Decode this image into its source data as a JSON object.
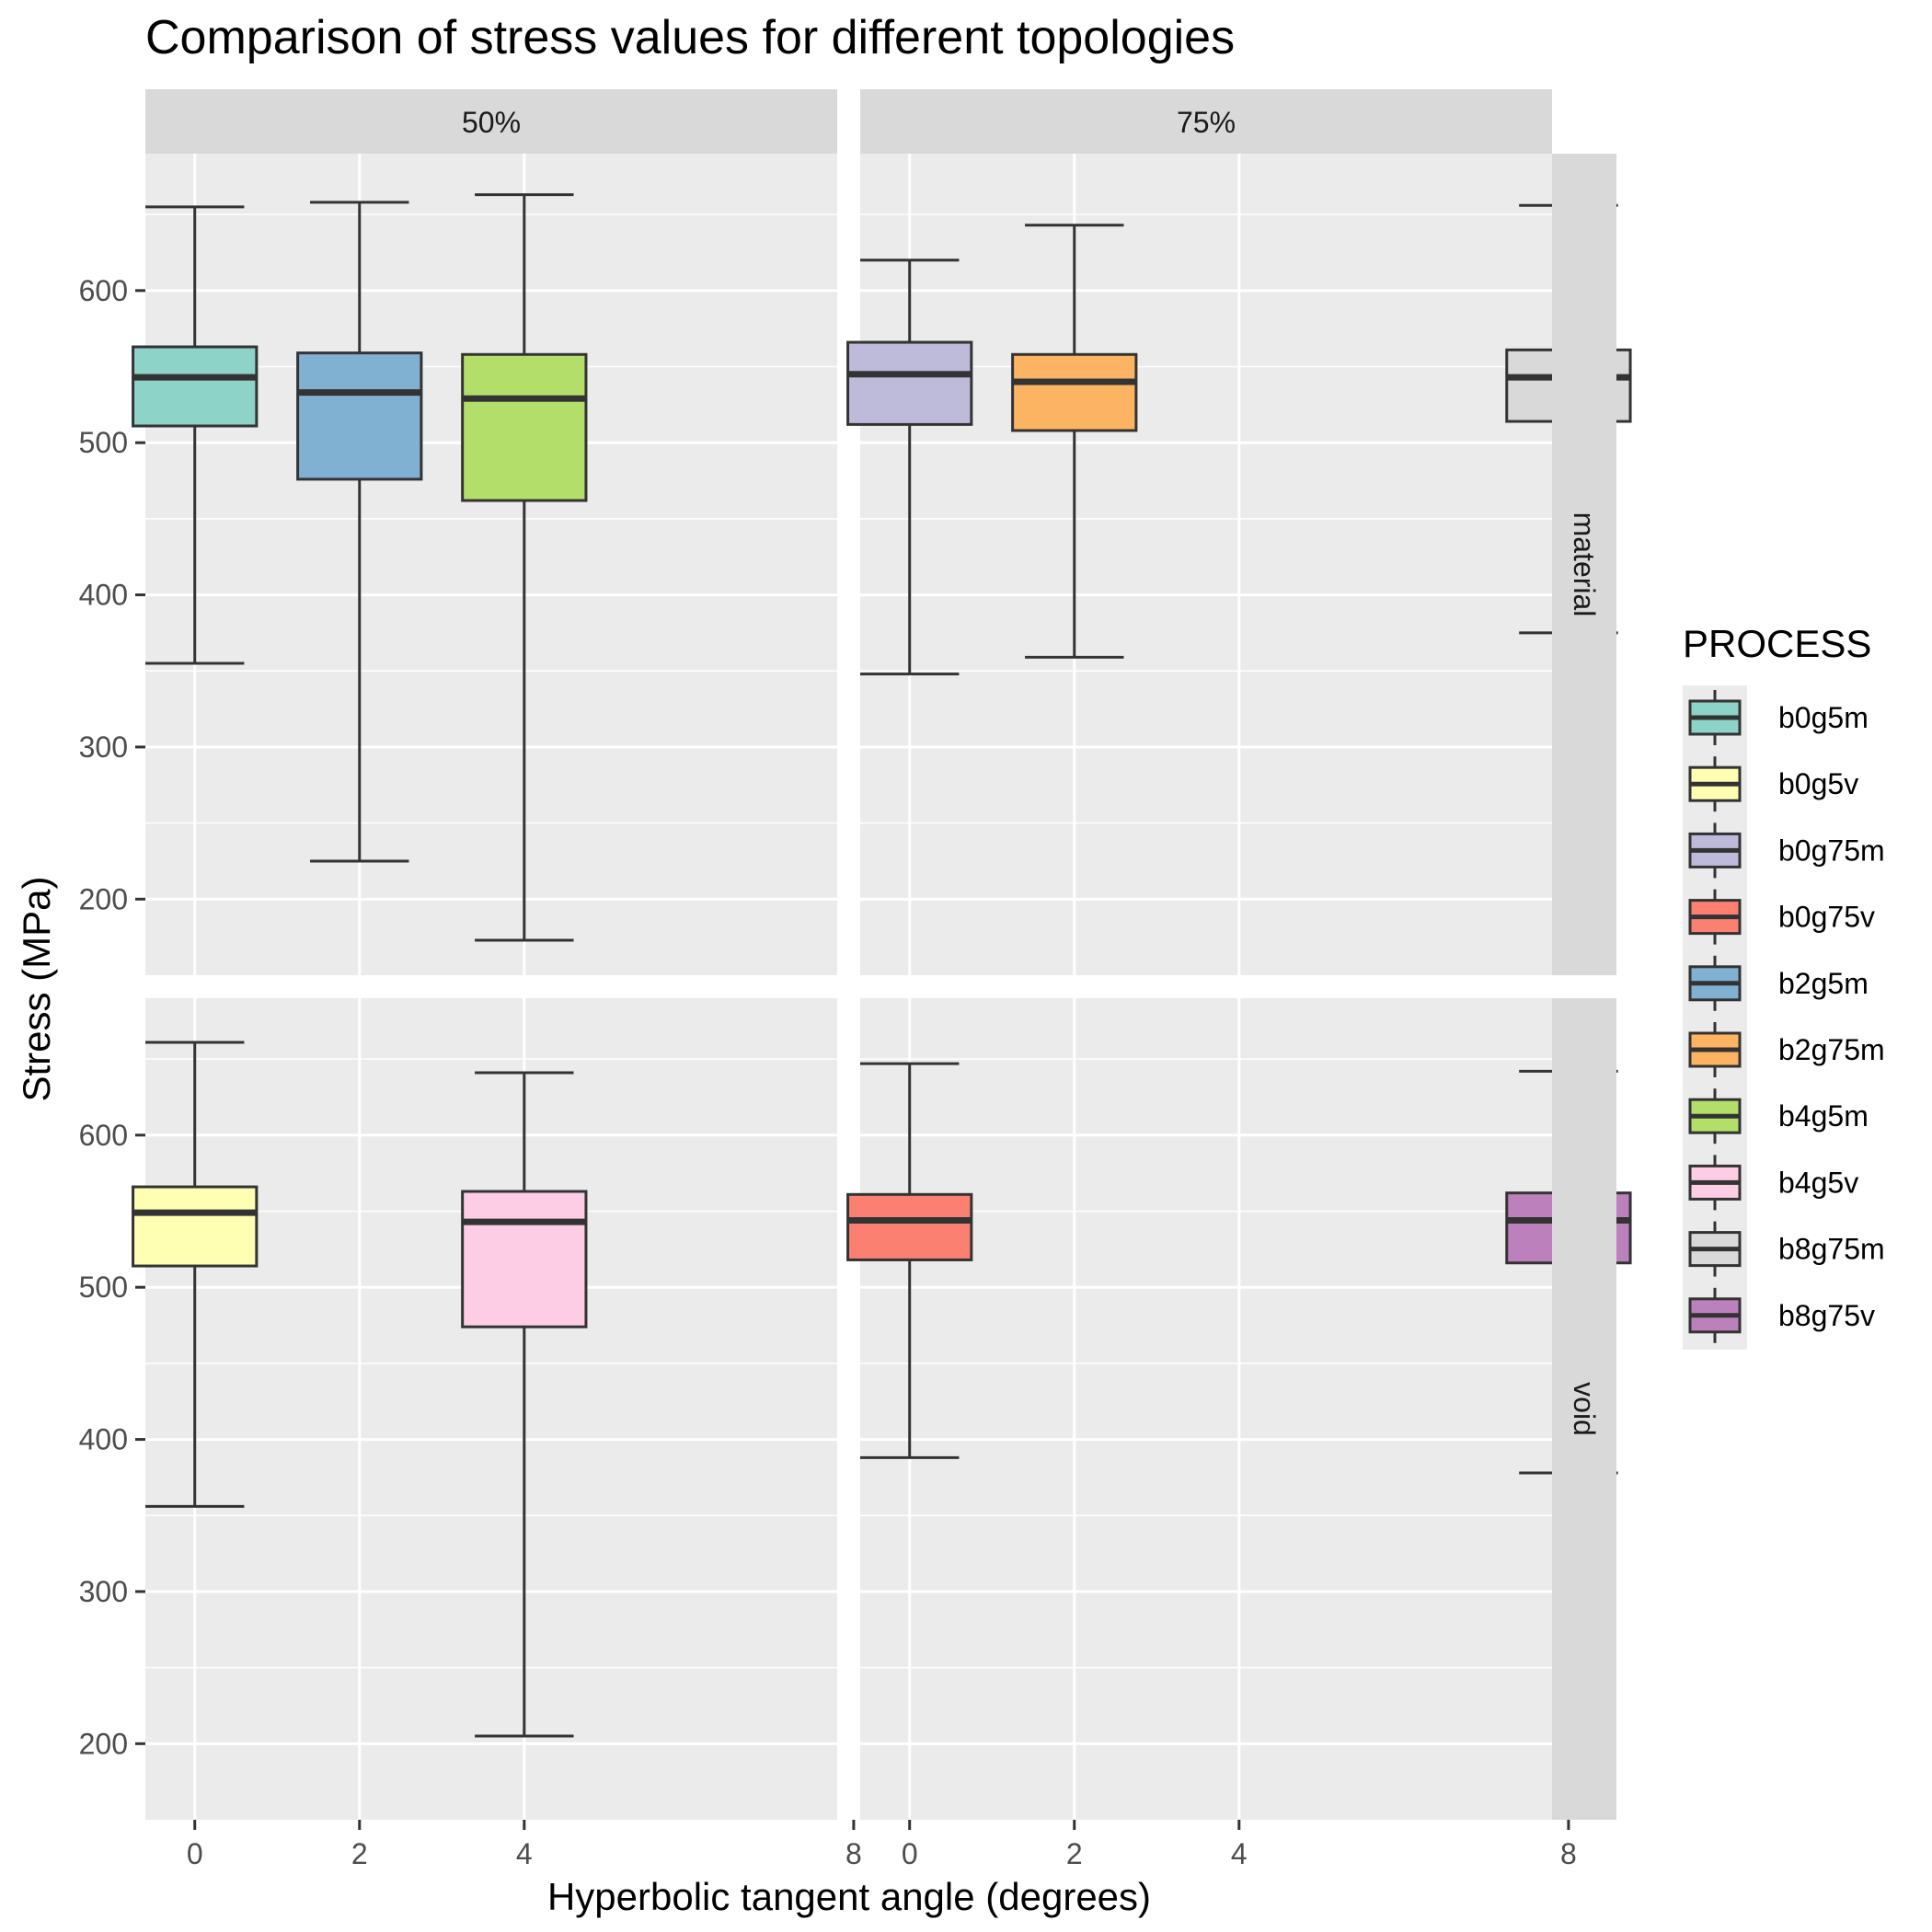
{
  "chart_data": {
    "type": "boxplot",
    "title": "Comparison of stress values for different topologies",
    "xlabel": "Hyperbolic tangent angle (degrees)",
    "ylabel": "Stress (MPa)",
    "x_ticks": [
      "0",
      "2",
      "4",
      "8"
    ],
    "y_ticks": [
      200,
      300,
      400,
      500,
      600
    ],
    "ylim": [
      150,
      690
    ],
    "grid": true,
    "legend": {
      "title": "PROCESS",
      "position": "right",
      "entries": [
        {
          "label": "b0g5m",
          "color": "#8DD3C7"
        },
        {
          "label": "b0g5v",
          "color": "#FFFFB3"
        },
        {
          "label": "b0g75m",
          "color": "#BEBADA"
        },
        {
          "label": "b0g75v",
          "color": "#FB8072"
        },
        {
          "label": "b2g5m",
          "color": "#80B1D3"
        },
        {
          "label": "b2g75m",
          "color": "#FDB462"
        },
        {
          "label": "b4g5m",
          "color": "#B3DE69"
        },
        {
          "label": "b4g5v",
          "color": "#FCCDE5"
        },
        {
          "label": "b8g75m",
          "color": "#D9D9D9"
        },
        {
          "label": "b8g75v",
          "color": "#BC80BD"
        }
      ]
    },
    "col_facets": [
      "50%",
      "75%"
    ],
    "row_facets": [
      "material",
      "void"
    ],
    "panels": [
      {
        "col": "50%",
        "row": "material",
        "boxes": [
          {
            "x": "0",
            "process": "b0g5m",
            "min": 355,
            "q1": 511,
            "median": 543,
            "q3": 563,
            "max": 655
          },
          {
            "x": "2",
            "process": "b2g5m",
            "min": 225,
            "q1": 476,
            "median": 533,
            "q3": 559,
            "max": 658
          },
          {
            "x": "4",
            "process": "b4g5m",
            "min": 173,
            "q1": 462,
            "median": 529,
            "q3": 558,
            "max": 663
          }
        ]
      },
      {
        "col": "75%",
        "row": "material",
        "boxes": [
          {
            "x": "0",
            "process": "b0g75m",
            "min": 348,
            "q1": 512,
            "median": 545,
            "q3": 566,
            "max": 620
          },
          {
            "x": "2",
            "process": "b2g75m",
            "min": 359,
            "q1": 508,
            "median": 540,
            "q3": 558,
            "max": 643
          },
          {
            "x": "8",
            "process": "b8g75m",
            "min": 375,
            "q1": 514,
            "median": 543,
            "q3": 561,
            "max": 656
          }
        ]
      },
      {
        "col": "50%",
        "row": "void",
        "boxes": [
          {
            "x": "0",
            "process": "b0g5v",
            "min": 356,
            "q1": 514,
            "median": 549,
            "q3": 566,
            "max": 661
          },
          {
            "x": "4",
            "process": "b4g5v",
            "min": 205,
            "q1": 474,
            "median": 543,
            "q3": 563,
            "max": 641
          }
        ]
      },
      {
        "col": "75%",
        "row": "void",
        "boxes": [
          {
            "x": "0",
            "process": "b0g75v",
            "min": 388,
            "q1": 518,
            "median": 544,
            "q3": 561,
            "max": 647
          },
          {
            "x": "8",
            "process": "b8g75v",
            "min": 378,
            "q1": 516,
            "median": 544,
            "q3": 562,
            "max": 642
          }
        ]
      }
    ]
  }
}
